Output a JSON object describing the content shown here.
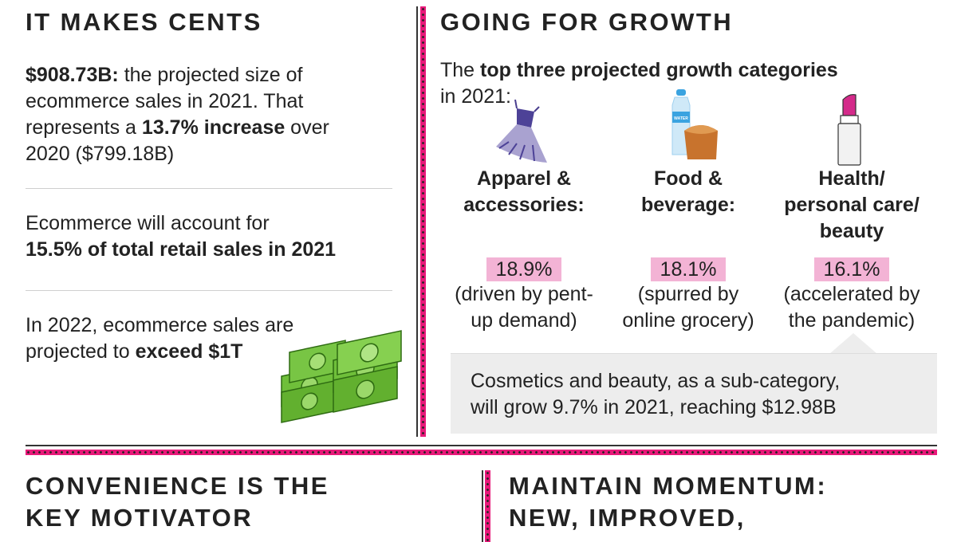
{
  "left": {
    "heading": "IT MAKES CENTS",
    "stat1": {
      "bold": "$908.73B:",
      "t1": " the projected size of",
      "line2": "ecommerce sales in 2021. That",
      "t3a": "represents a ",
      "bold2": "13.7% increase",
      "t3b": " over",
      "line4": "2020 ($799.18B)"
    },
    "stat2": {
      "line1": "Ecommerce will account for",
      "bold": "15.5% of total retail sales in 2021"
    },
    "stat3": {
      "line1": "In 2022, ecommerce sales are",
      "t2": "projected to ",
      "bold": "exceed $1T"
    }
  },
  "right": {
    "heading": "GOING FOR GROWTH",
    "intro": {
      "t1": "The ",
      "bold": "top three projected growth categories",
      "line2": "in 2021:"
    },
    "bottle_label": "WATER",
    "categories": [
      {
        "label_lines": [
          "Apparel &",
          "accessories:"
        ],
        "percent": "18.9%",
        "note_lines": [
          "(driven by pent-",
          "up demand)"
        ],
        "icon": "dress-icon"
      },
      {
        "label_lines": [
          "Food &",
          "beverage:"
        ],
        "percent": "18.1%",
        "note_lines": [
          "(spurred by",
          "online grocery)"
        ],
        "icon": "food-beverage-icon"
      },
      {
        "label_lines": [
          "Health/",
          "personal care/",
          "beauty"
        ],
        "percent": "16.1%",
        "note_lines": [
          "(accelerated by",
          "the pandemic)"
        ],
        "icon": "lipstick-icon"
      }
    ],
    "callout": [
      "Cosmetics and beauty, as a sub-category,",
      "will grow 9.7% in 2021, reaching $12.98B"
    ]
  },
  "bottom": {
    "left_heading": [
      "CONVENIENCE IS THE",
      "KEY MOTIVATOR"
    ],
    "right_heading": [
      "MAINTAIN MOMENTUM:",
      "NEW, IMPROVED,"
    ]
  },
  "colors": {
    "accent": "#e8197a",
    "highlight": "#f3b3d5",
    "callout_bg": "#ededed"
  }
}
